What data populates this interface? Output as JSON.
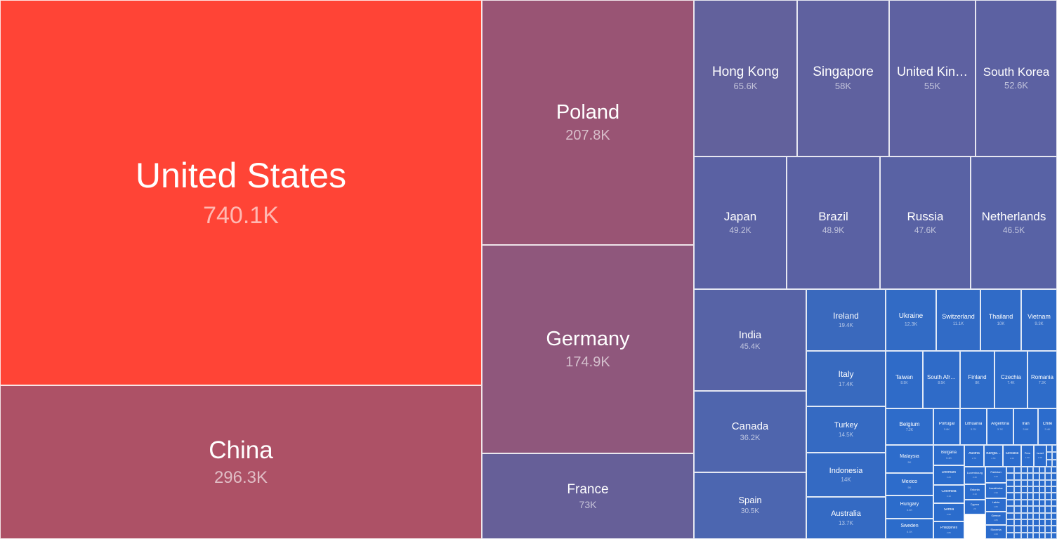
{
  "chart_data": {
    "type": "treemap",
    "items": [
      {
        "name": "United States",
        "value_label": "740.1K",
        "value": 740100,
        "color": "#ff4436"
      },
      {
        "name": "China",
        "value_label": "296.3K",
        "value": 296300,
        "color": "#ad5166"
      },
      {
        "name": "Poland",
        "value_label": "207.8K",
        "value": 207800,
        "color": "#995474"
      },
      {
        "name": "Germany",
        "value_label": "174.9K",
        "value": 174900,
        "color": "#8f577c"
      },
      {
        "name": "France",
        "value_label": "73K",
        "value": 73000,
        "color": "#665f98"
      },
      {
        "name": "Hong Kong",
        "value_label": "65.6K",
        "value": 65600,
        "color": "#62619c"
      },
      {
        "name": "Singapore",
        "value_label": "58K",
        "value": 58000,
        "color": "#5f619f"
      },
      {
        "name": "United Kingdom",
        "display": "United Kin…",
        "value_label": "55K",
        "value": 55000,
        "color": "#5e61a1"
      },
      {
        "name": "South Korea",
        "value_label": "52.6K",
        "value": 52600,
        "color": "#5c61a2"
      },
      {
        "name": "Japan",
        "value_label": "49.2K",
        "value": 49200,
        "color": "#5a61a3"
      },
      {
        "name": "Brazil",
        "value_label": "48.9K",
        "value": 48900,
        "color": "#5a61a3"
      },
      {
        "name": "Russia",
        "value_label": "47.6K",
        "value": 47600,
        "color": "#5962a4"
      },
      {
        "name": "Netherlands",
        "value_label": "46.5K",
        "value": 46500,
        "color": "#5862a5"
      },
      {
        "name": "India",
        "value_label": "45.4K",
        "value": 45400,
        "color": "#5763a6"
      },
      {
        "name": "Canada",
        "value_label": "36.2K",
        "value": 36200,
        "color": "#4f65ad"
      },
      {
        "name": "Spain",
        "value_label": "30.5K",
        "value": 30500,
        "color": "#4c66b0"
      },
      {
        "name": "Ireland",
        "value_label": "19.4K",
        "value": 19400,
        "color": "#3a69bd"
      },
      {
        "name": "Italy",
        "value_label": "17.4K",
        "value": 17400,
        "color": "#386abf"
      },
      {
        "name": "Turkey",
        "value_label": "14.5K",
        "value": 14500,
        "color": "#356ac2"
      },
      {
        "name": "Indonesia",
        "value_label": "14K",
        "value": 14000,
        "color": "#346ac3"
      },
      {
        "name": "Australia",
        "value_label": "13.7K",
        "value": 13700,
        "color": "#346ac3"
      },
      {
        "name": "Ukraine",
        "value_label": "12.3K",
        "value": 12300,
        "color": "#326bc5"
      },
      {
        "name": "Switzerland",
        "value_label": "11.1K",
        "value": 11100,
        "color": "#316bc6"
      },
      {
        "name": "Thailand",
        "value_label": "10K",
        "value": 10000,
        "color": "#306bc7"
      },
      {
        "name": "Vietnam",
        "value_label": "9.3K",
        "value": 9300,
        "color": "#306bc7"
      },
      {
        "name": "Taiwan",
        "value_label": "8.5K",
        "value": 8500,
        "color": "#2f6bc8"
      },
      {
        "name": "South Africa",
        "display": "South Afr…",
        "value_label": "8.5K",
        "value": 8500,
        "color": "#2f6bc8"
      },
      {
        "name": "Finland",
        "value_label": "8K",
        "value": 8000,
        "color": "#2e6cc9"
      },
      {
        "name": "Czechia",
        "value_label": "7.4K",
        "value": 7400,
        "color": "#2e6cc9"
      },
      {
        "name": "Romania",
        "value_label": "7.3K",
        "value": 7300,
        "color": "#2e6cc9"
      },
      {
        "name": "Belgium",
        "value_label": "7.2K",
        "value": 7200,
        "color": "#2e6cca"
      },
      {
        "name": "Malaysia",
        "value_label": "5K",
        "value": 5000,
        "color": "#2d6ccb"
      },
      {
        "name": "Mexico",
        "value_label": "5K",
        "value": 5000,
        "color": "#2d6ccb"
      },
      {
        "name": "Hungary",
        "value_label": "4.4K",
        "value": 4400,
        "color": "#2c6ccb"
      },
      {
        "name": "Sweden",
        "value_label": "4.1K",
        "value": 4100,
        "color": "#2c6ccb"
      },
      {
        "name": "Portugal",
        "value_label": "3.8K",
        "value": 3800,
        "color": "#2c6ccc"
      },
      {
        "name": "Lithuania",
        "value_label": "3.7K",
        "value": 3700,
        "color": "#2c6ccc"
      },
      {
        "name": "Argentina",
        "value_label": "3.7K",
        "value": 3700,
        "color": "#2c6ccc"
      },
      {
        "name": "Iran",
        "value_label": "3.6K",
        "value": 3600,
        "color": "#2c6ccc"
      },
      {
        "name": "Chile",
        "value_label": "3.4K",
        "value": 3400,
        "color": "#2c6ccc"
      },
      {
        "name": "Bulgaria",
        "value_label": "3.4K",
        "value": 3400,
        "color": "#2c6ccc"
      },
      {
        "name": "Denmark",
        "value_label": "3.2K",
        "value": 3200,
        "color": "#2b6ccc"
      },
      {
        "name": "Colombia",
        "value_label": "3.1K",
        "value": 3100,
        "color": "#2b6ccc"
      },
      {
        "name": "Serbia",
        "value_label": "2.9K",
        "value": 2900,
        "color": "#2b6ccc"
      },
      {
        "name": "Philippines",
        "value_label": "2.8K",
        "value": 2800,
        "color": "#2b6ccc"
      },
      {
        "name": "Austria",
        "value_label": "2.7K",
        "value": 2700,
        "color": "#2b6ccd"
      },
      {
        "name": "Bangladesh",
        "display": "Bangla…",
        "value_label": "2.5K",
        "value": 2500,
        "color": "#2b6ccd"
      },
      {
        "name": "Slovakia",
        "value_label": "2.4K",
        "value": 2400,
        "color": "#2b6ccd"
      },
      {
        "name": "Luxembourg",
        "value_label": "2.4K",
        "value": 2400,
        "color": "#2b6ccd"
      },
      {
        "name": "Pakistan",
        "value_label": "2.2K",
        "value": 2200,
        "color": "#2b6ccd"
      },
      {
        "name": "Estonia",
        "value_label": "2.1K",
        "value": 2100,
        "color": "#2b6ccd"
      },
      {
        "name": "Cyprus",
        "value_label": "2K",
        "value": 2000,
        "color": "#2b6ccd"
      },
      {
        "name": "Kazakhstan",
        "value_label": "1.9K",
        "value": 1900,
        "color": "#2b6ccd"
      },
      {
        "name": "Latvia",
        "value_label": "1.8K",
        "value": 1800,
        "color": "#2b6ccd"
      },
      {
        "name": "Greece",
        "value_label": "1.8K",
        "value": 1800,
        "color": "#2b6ccd"
      },
      {
        "name": "Slovenia",
        "value_label": "1.6K",
        "value": 1600,
        "color": "#2b6ccd"
      },
      {
        "name": "Peru",
        "value_label": "1.5K",
        "value": 1500,
        "color": "#2b6ccd"
      },
      {
        "name": "Israel",
        "value_label": "1.5K",
        "value": 1500,
        "color": "#2b6ccd"
      }
    ]
  }
}
